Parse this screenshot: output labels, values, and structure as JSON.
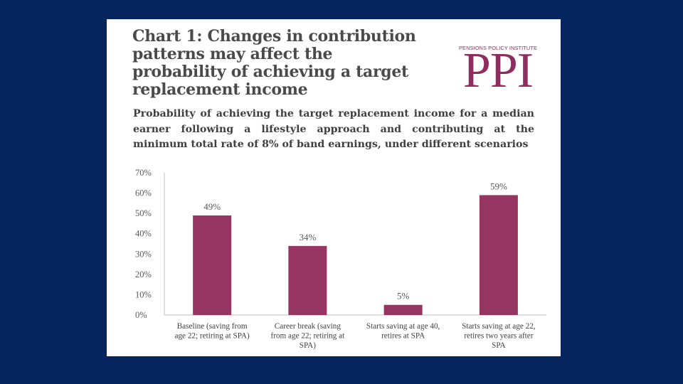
{
  "slide": {
    "title_lines": [
      "Chart 1: Changes in contribution",
      "patterns may affect the",
      "probability of achieving a target",
      "replacement income"
    ],
    "logo": {
      "small_text": "PENSIONS POLICY INSTITUTE",
      "big_text": "PPI",
      "color": "#8e2d5f"
    }
  },
  "chart_data": {
    "type": "bar",
    "title": "Probability of achieving the target replacement income for a median earner following a lifestyle approach and contributing at the minimum total rate of 8% of band earnings, under different scenarios",
    "categories": [
      [
        "Baseline (saving from",
        "age 22; retiring at SPA)"
      ],
      [
        "Career break (saving",
        "from age 22; retiring at",
        "SPA)"
      ],
      [
        "Starts saving at age 40,",
        "retires at SPA"
      ],
      [
        "Starts saving at age 22,",
        "retires two years after",
        "SPA"
      ]
    ],
    "values": [
      49,
      34,
      5,
      59
    ],
    "data_labels": [
      "49%",
      "34%",
      "5%",
      "59%"
    ],
    "ylim": [
      0,
      70
    ],
    "yticks": [
      0,
      10,
      20,
      30,
      40,
      50,
      60,
      70
    ],
    "ytick_labels": [
      "0%",
      "10%",
      "20%",
      "30%",
      "40%",
      "50%",
      "60%",
      "70%"
    ],
    "xlabel": "",
    "ylabel": "",
    "grid": false,
    "bar_color": "#963462"
  }
}
